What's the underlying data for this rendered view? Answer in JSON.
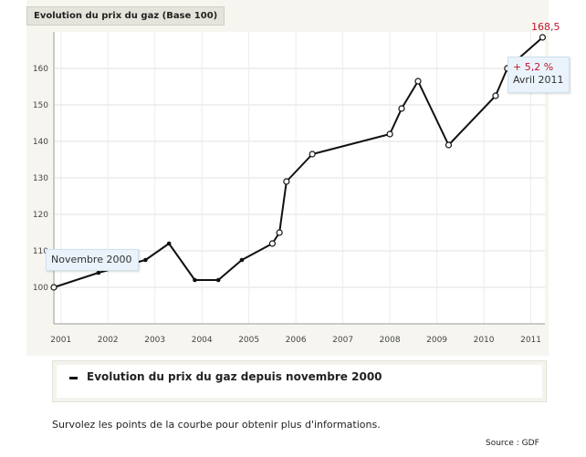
{
  "chart_data": {
    "type": "line",
    "title": "Evolution du prix du gaz (Base 100)",
    "x_ticks": [
      "2001",
      "2002",
      "2003",
      "2004",
      "2005",
      "2006",
      "2007",
      "2008",
      "2009",
      "2010",
      "2011"
    ],
    "y_ticks": [
      100,
      110,
      120,
      130,
      140,
      150,
      160
    ],
    "ylim": [
      90,
      170
    ],
    "xlim": [
      2000.85,
      2011.3
    ],
    "grid": true,
    "series": [
      {
        "name": "Evolution du prix du gaz depuis novembre 2000",
        "color": "#111111",
        "points": [
          {
            "x": 2000.85,
            "y": 100,
            "open": true
          },
          {
            "x": 2001.8,
            "y": 104,
            "open": false
          },
          {
            "x": 2002.8,
            "y": 107.5,
            "open": false
          },
          {
            "x": 2003.3,
            "y": 112,
            "open": false
          },
          {
            "x": 2003.85,
            "y": 102,
            "open": false
          },
          {
            "x": 2004.35,
            "y": 102,
            "open": false
          },
          {
            "x": 2004.85,
            "y": 107.5,
            "open": false
          },
          {
            "x": 2005.5,
            "y": 112,
            "open": true
          },
          {
            "x": 2005.65,
            "y": 115,
            "open": true
          },
          {
            "x": 2005.8,
            "y": 129,
            "open": true
          },
          {
            "x": 2006.35,
            "y": 136.5,
            "open": true
          },
          {
            "x": 2008.0,
            "y": 142,
            "open": true
          },
          {
            "x": 2008.25,
            "y": 149,
            "open": true
          },
          {
            "x": 2008.6,
            "y": 156.5,
            "open": true
          },
          {
            "x": 2009.25,
            "y": 139,
            "open": true
          },
          {
            "x": 2010.25,
            "y": 152.5,
            "open": true
          },
          {
            "x": 2010.5,
            "y": 160,
            "open": true
          },
          {
            "x": 2011.25,
            "y": 168.5,
            "open": true
          }
        ]
      }
    ],
    "annotations": {
      "start_label": "Novembre 2000",
      "end_value": "168,5",
      "end_change": "+ 5,2 %",
      "end_label": "Avril 2011"
    }
  },
  "legend": {
    "label": "Evolution du prix du gaz depuis novembre 2000",
    "placement": "bottom"
  },
  "hint": "Survolez les points de la courbe pour obtenir plus d'informations.",
  "source": "Source :  GDF"
}
